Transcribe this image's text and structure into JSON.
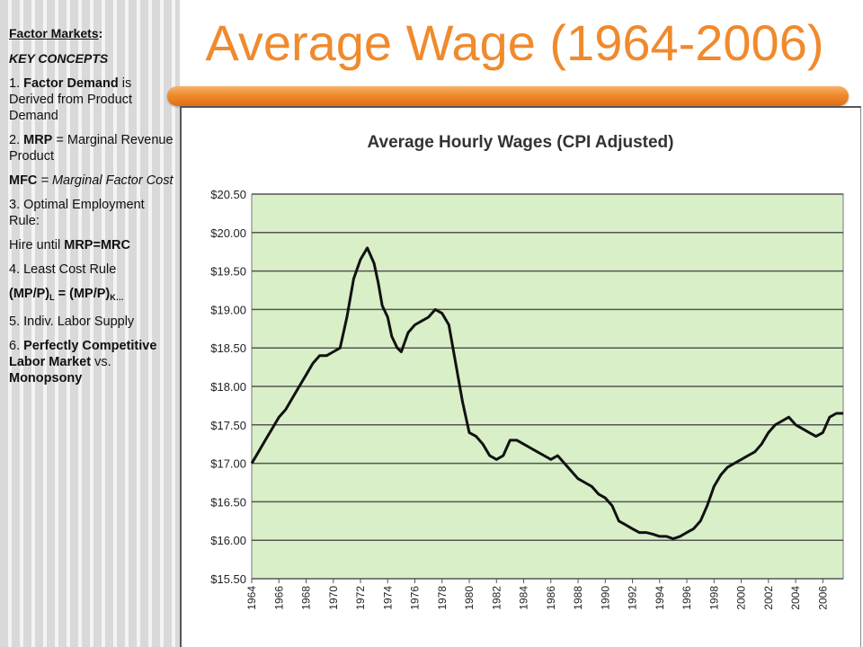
{
  "slide_title": "Average Wage (1964-2006)",
  "sidebar": {
    "heading": "Factor Markets",
    "heading_colon": ":",
    "key_concepts": "KEY CONCEPTS",
    "item1_prefix": "1. ",
    "item1_bold": "Factor Demand",
    "item1_rest": " is Derived from Product Demand",
    "item2_prefix": "2. ",
    "item2_bold": "MRP",
    "item2_rest": " = Marginal Revenue Product",
    "mfc_bold": "MFC",
    "mfc_rest": " = Marginal Factor Cost",
    "item3": "3. Optimal Employment Rule:",
    "hire_text": "Hire until ",
    "hire_bold": "MRP=MRC",
    "item4": "4. Least Cost Rule",
    "mp_left": "(MP/P)",
    "mp_sub_l": "L",
    "mp_mid": " = (MP/P)",
    "mp_sub_k": "K…",
    "item5": "5. Indiv. Labor Supply",
    "item6_prefix": "6. ",
    "item6_bold": "Perfectly Competitive Labor Market",
    "item6_vs": " vs. ",
    "item6_bold2": "Monopsony"
  },
  "colors": {
    "title": "#f08a2c",
    "plot_background": "#d8efc8",
    "line": "#111111",
    "grid": "#555555"
  },
  "chart_data": {
    "type": "line",
    "title": "Average Hourly Wages (CPI Adjusted)",
    "xlabel": "",
    "ylabel": "",
    "ylim": [
      15.5,
      20.5
    ],
    "xlim": [
      1964,
      2007.5
    ],
    "y_ticks": [
      "$15.50",
      "$16.00",
      "$16.50",
      "$17.00",
      "$17.50",
      "$18.00",
      "$18.50",
      "$19.00",
      "$19.50",
      "$20.00",
      "$20.50"
    ],
    "y_tick_values": [
      15.5,
      16.0,
      16.5,
      17.0,
      17.5,
      18.0,
      18.5,
      19.0,
      19.5,
      20.0,
      20.5
    ],
    "x_ticks": [
      "1964",
      "1966",
      "1968",
      "1970",
      "1972",
      "1974",
      "1976",
      "1978",
      "1980",
      "1982",
      "1984",
      "1986",
      "1988",
      "1990",
      "1992",
      "1994",
      "1996",
      "1998",
      "2000",
      "2002",
      "2004",
      "2006"
    ],
    "x_tick_values": [
      1964,
      1966,
      1968,
      1970,
      1972,
      1974,
      1976,
      1978,
      1980,
      1982,
      1984,
      1986,
      1988,
      1990,
      1992,
      1994,
      1996,
      1998,
      2000,
      2002,
      2004,
      2006
    ],
    "grid": true,
    "series": [
      {
        "x": [
          1964.0,
          1964.5,
          1965.0,
          1965.5,
          1966.0,
          1966.5,
          1967.0,
          1967.5,
          1968.0,
          1968.5,
          1969.0,
          1969.5,
          1970.0,
          1970.5,
          1971.0,
          1971.5,
          1972.0,
          1972.5,
          1973.0,
          1973.3,
          1973.6,
          1974.0,
          1974.3,
          1974.7,
          1975.0,
          1975.5,
          1976.0,
          1976.5,
          1977.0,
          1977.5,
          1978.0,
          1978.5,
          1979.0,
          1979.5,
          1980.0,
          1980.5,
          1981.0,
          1981.5,
          1982.0,
          1982.5,
          1983.0,
          1983.5,
          1984.0,
          1984.5,
          1985.0,
          1985.5,
          1986.0,
          1986.5,
          1987.0,
          1987.5,
          1988.0,
          1988.5,
          1989.0,
          1989.5,
          1990.0,
          1990.5,
          1991.0,
          1991.5,
          1992.0,
          1992.5,
          1993.0,
          1993.5,
          1994.0,
          1994.5,
          1995.0,
          1995.5,
          1996.0,
          1996.5,
          1997.0,
          1997.5,
          1998.0,
          1998.5,
          1999.0,
          1999.5,
          2000.0,
          2000.5,
          2001.0,
          2001.5,
          2002.0,
          2002.5,
          2003.0,
          2003.5,
          2004.0,
          2004.5,
          2005.0,
          2005.5,
          2006.0,
          2006.5,
          2007.0,
          2007.5
        ],
        "y": [
          17.0,
          17.15,
          17.3,
          17.45,
          17.6,
          17.7,
          17.85,
          18.0,
          18.15,
          18.3,
          18.4,
          18.4,
          18.45,
          18.5,
          18.9,
          19.4,
          19.65,
          19.8,
          19.6,
          19.35,
          19.05,
          18.9,
          18.65,
          18.5,
          18.45,
          18.7,
          18.8,
          18.85,
          18.9,
          19.0,
          18.95,
          18.8,
          18.3,
          17.8,
          17.4,
          17.35,
          17.25,
          17.1,
          17.05,
          17.1,
          17.3,
          17.3,
          17.25,
          17.2,
          17.15,
          17.1,
          17.05,
          17.1,
          17.0,
          16.9,
          16.8,
          16.75,
          16.7,
          16.6,
          16.55,
          16.45,
          16.25,
          16.2,
          16.15,
          16.1,
          16.1,
          16.08,
          16.05,
          16.05,
          16.02,
          16.05,
          16.1,
          16.15,
          16.25,
          16.45,
          16.7,
          16.85,
          16.95,
          17.0,
          17.05,
          17.1,
          17.15,
          17.25,
          17.4,
          17.5,
          17.55,
          17.6,
          17.5,
          17.45,
          17.4,
          17.35,
          17.4,
          17.6,
          17.65,
          17.65
        ]
      }
    ]
  }
}
